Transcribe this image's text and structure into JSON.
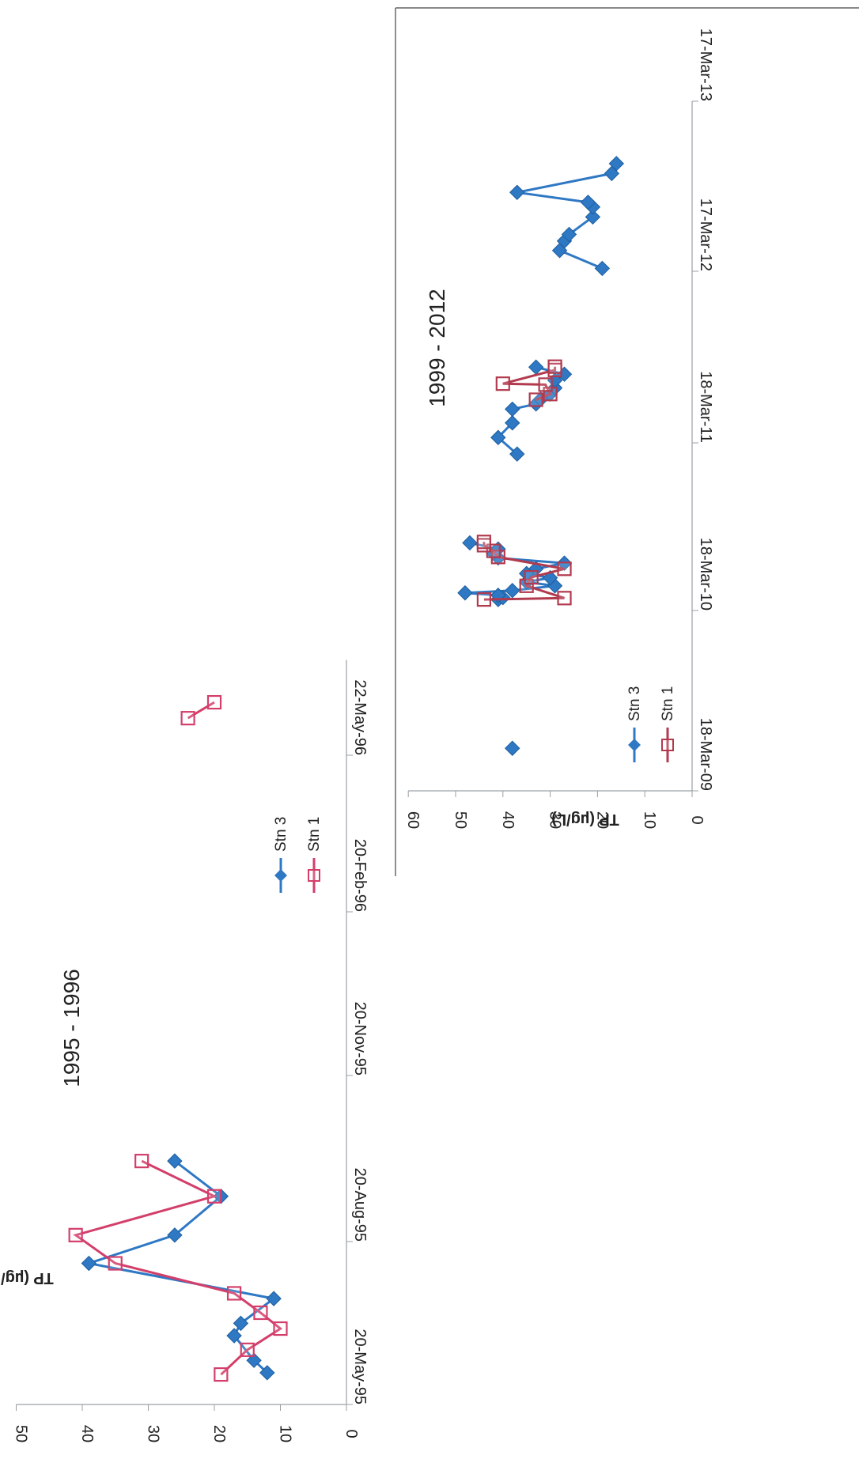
{
  "chart_data": [
    {
      "type": "line",
      "title": "1995 - 1996",
      "ylabel": "TP (µg/L)",
      "xlabel": "",
      "ylim": [
        0,
        50
      ],
      "xlim": [
        "1995-05-20",
        "1996-07-15"
      ],
      "x_ticks": [
        "20-May-95",
        "20-Aug-95",
        "20-Nov-95",
        "20-Feb-96",
        "22-May-96"
      ],
      "y_ticks": [
        "0",
        "10",
        "20",
        "30",
        "40",
        "50"
      ],
      "legend_position": "right",
      "series": [
        {
          "name": "Stn 3",
          "color": "#2e78c4",
          "marker": "diamond",
          "points": [
            {
              "x": "1995-06-07",
              "y": 12
            },
            {
              "x": "1995-06-14",
              "y": 14
            },
            {
              "x": "1995-06-28",
              "y": 17
            },
            {
              "x": "1995-07-05",
              "y": 16
            },
            {
              "x": "1995-07-19",
              "y": 11
            },
            {
              "x": "1995-08-08",
              "y": 39
            },
            {
              "x": "1995-08-24",
              "y": 26
            },
            {
              "x": "1995-09-15",
              "y": 19
            },
            {
              "x": "1995-10-05",
              "y": 26
            }
          ]
        },
        {
          "name": "Stn 1",
          "color": "#d33f6a",
          "marker": "open-square",
          "points": [
            {
              "x": "1995-06-06",
              "y": 19
            },
            {
              "x": "1995-06-20",
              "y": 15
            },
            {
              "x": "1995-07-02",
              "y": 10
            },
            {
              "x": "1995-07-11",
              "y": 13
            },
            {
              "x": "1995-07-22",
              "y": 17
            },
            {
              "x": "1995-08-08",
              "y": 35
            },
            {
              "x": "1995-08-24",
              "y": 41
            },
            {
              "x": "1995-09-15",
              "y": 20
            },
            {
              "x": "1995-10-05",
              "y": 31
            },
            {
              "x": "1996-06-12",
              "y": 24
            },
            {
              "x": "1996-06-21",
              "y": 20
            }
          ]
        }
      ]
    },
    {
      "type": "line",
      "title": "1999 - 2012",
      "ylabel": "TP (µg/L)",
      "xlabel": "",
      "ylim": [
        0,
        60
      ],
      "xlim": [
        "2009-03-18",
        "2013-03-17"
      ],
      "x_ticks": [
        "18-Mar-09",
        "18-Mar-10",
        "18-Mar-11",
        "17-Mar-12",
        "17-Mar-13"
      ],
      "y_ticks": [
        "0",
        "10",
        "20",
        "30",
        "40",
        "50",
        "60"
      ],
      "legend_position": "top-left",
      "series": [
        {
          "name": "Stn 3",
          "color": "#2e78c4",
          "marker": "diamond",
          "points": [
            {
              "x": "2009-06-16",
              "y": 38
            },
            {
              "x": "2010-04-27",
              "y": 41
            },
            {
              "x": "2010-05-01",
              "y": 40
            },
            {
              "x": "2010-05-06",
              "y": 41
            },
            {
              "x": "2010-05-11",
              "y": 48
            },
            {
              "x": "2010-05-16",
              "y": 38
            },
            {
              "x": "2010-05-26",
              "y": 29
            },
            {
              "x": "2010-06-03",
              "y": 35
            },
            {
              "x": "2010-06-12",
              "y": 30
            },
            {
              "x": "2010-06-21",
              "y": 35
            },
            {
              "x": "2010-07-01",
              "y": 33
            },
            {
              "x": "2010-07-13",
              "y": 27
            },
            {
              "x": "2010-07-24",
              "y": 41
            },
            {
              "x": "2010-08-03",
              "y": 42
            },
            {
              "x": "2010-08-12",
              "y": 41
            },
            {
              "x": "2010-08-25",
              "y": 47
            },
            {
              "x": "2011-03-01",
              "y": 37
            },
            {
              "x": "2011-04-05",
              "y": 41
            },
            {
              "x": "2011-05-06",
              "y": 38
            },
            {
              "x": "2011-06-04",
              "y": 38
            },
            {
              "x": "2011-06-15",
              "y": 33
            },
            {
              "x": "2011-06-25",
              "y": 32
            },
            {
              "x": "2011-07-06",
              "y": 30
            },
            {
              "x": "2011-07-19",
              "y": 29
            },
            {
              "x": "2011-08-04",
              "y": 29
            },
            {
              "x": "2011-08-17",
              "y": 27
            },
            {
              "x": "2011-09-01",
              "y": 33
            },
            {
              "x": "2012-03-28",
              "y": 19
            },
            {
              "x": "2012-05-05",
              "y": 28
            },
            {
              "x": "2012-05-25",
              "y": 27
            },
            {
              "x": "2012-06-08",
              "y": 26
            },
            {
              "x": "2012-07-15",
              "y": 21
            },
            {
              "x": "2012-08-05",
              "y": 21
            },
            {
              "x": "2012-08-15",
              "y": 22
            },
            {
              "x": "2012-09-05",
              "y": 37
            },
            {
              "x": "2012-10-15",
              "y": 17
            },
            {
              "x": "2012-11-05",
              "y": 16
            }
          ]
        },
        {
          "name": "Stn 1",
          "color": "#b23a4e",
          "marker": "open-square",
          "points": [
            {
              "x": "2010-04-27",
              "y": 44
            },
            {
              "x": "2010-04-30",
              "y": 27
            },
            {
              "x": "2010-05-26",
              "y": 35
            },
            {
              "x": "2010-06-13",
              "y": 34
            },
            {
              "x": "2010-07-01",
              "y": 27
            },
            {
              "x": "2010-07-26",
              "y": 41
            },
            {
              "x": "2010-08-08",
              "y": 42
            },
            {
              "x": "2010-08-20",
              "y": 44
            },
            {
              "x": "2010-08-27",
              "y": 44
            },
            {
              "x": "2011-06-24",
              "y": 33
            },
            {
              "x": "2011-07-06",
              "y": 30
            },
            {
              "x": "2011-07-26",
              "y": 31
            },
            {
              "x": "2011-07-28",
              "y": 40
            },
            {
              "x": "2011-08-26",
              "y": 29
            },
            {
              "x": "2011-09-02",
              "y": 29
            }
          ]
        }
      ]
    }
  ]
}
